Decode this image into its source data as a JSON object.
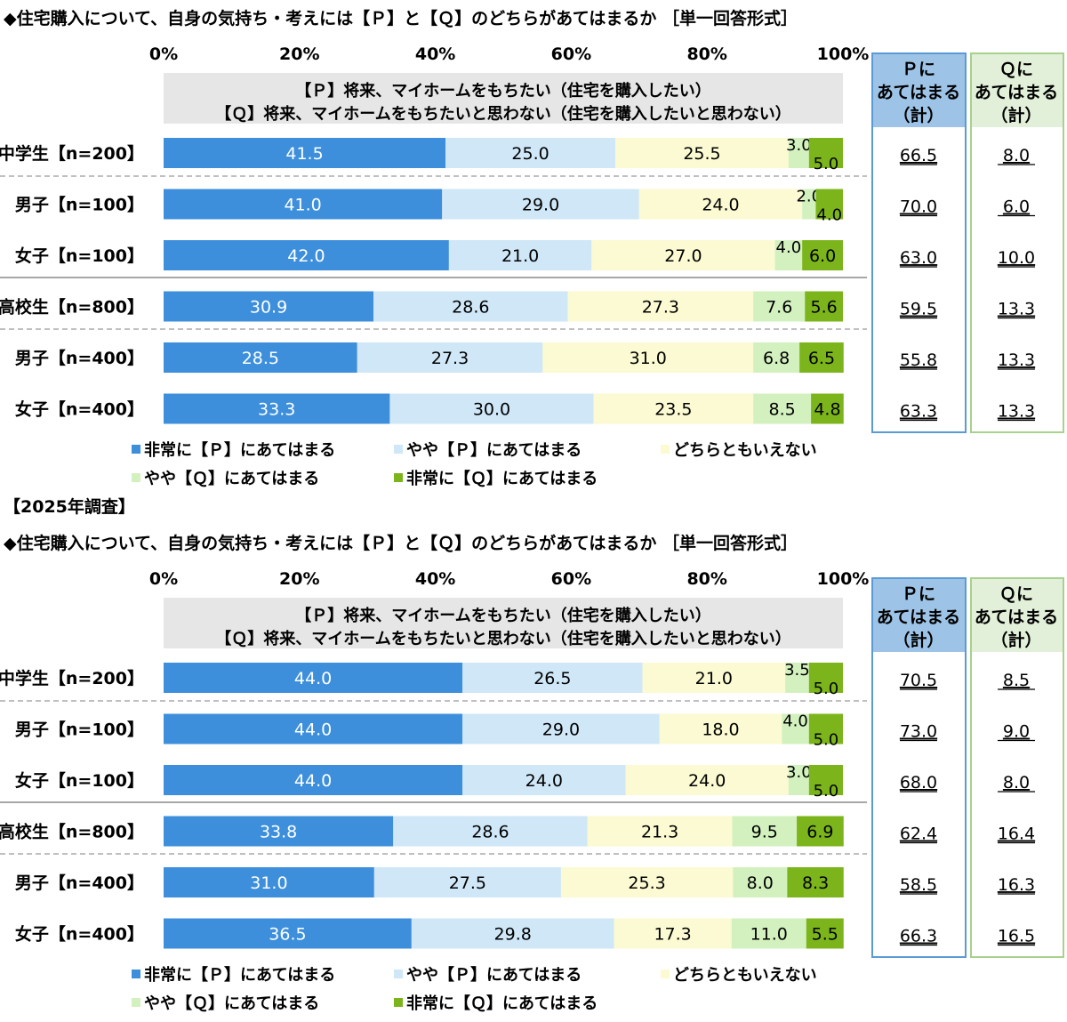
{
  "colors": {
    "p_strong": "#3d8fdc",
    "p_some": "#cfe7f7",
    "neutral": "#fbfad2",
    "q_some": "#d3f1bf",
    "q_strong": "#7cb51b",
    "p_total_border": "#5b9bd5",
    "p_total_header_bg": "#9dc3e6",
    "q_total_border": "#a9d18e",
    "q_total_header_bg": "#e2f0d9",
    "header_band": "#e6e6e6"
  },
  "panels": [
    {
      "survey_label": "",
      "title": "◆住宅購入について、自身の気持ち・考えには【Ｐ】と【Ｑ】のどちらがあてはまるか ［単一回答形式］",
      "question_p": "【Ｐ】将来、マイホームをもちたい（住宅を購入したい）",
      "question_q": "【Ｑ】将来、マイホームをもちたいと思わない（住宅を購入したいと思わない）",
      "p_total_header": [
        "Ｐに",
        "あてはまる",
        "（計）"
      ],
      "q_total_header": [
        "Ｑに",
        "あてはまる",
        "（計）"
      ]
    },
    {
      "survey_label": "【2025年調査】",
      "title": "◆住宅購入について、自身の気持ち・考えには【Ｐ】と【Ｑ】のどちらがあてはまるか ［単一回答形式］",
      "question_p": "【Ｐ】将来、マイホームをもちたい（住宅を購入したい）",
      "question_q": "【Ｑ】将来、マイホームをもちたいと思わない（住宅を購入したいと思わない）",
      "p_total_header": [
        "Ｐに",
        "あてはまる",
        "（計）"
      ],
      "q_total_header": [
        "Ｑに",
        "あてはまる",
        "（計）"
      ]
    }
  ],
  "chart_data": [
    {
      "type": "bar",
      "orientation": "horizontal",
      "stacked": true,
      "xlim": [
        0,
        100
      ],
      "xticks": [
        "0%",
        "20%",
        "40%",
        "60%",
        "80%",
        "100%"
      ],
      "categories": [
        "中学生【n=200】",
        "男子【n=100】",
        "女子【n=100】",
        "高校生【n=800】",
        "男子【n=400】",
        "女子【n=400】"
      ],
      "series": [
        {
          "name": "非常に【Ｐ】にあてはまる",
          "values": [
            41.5,
            41.0,
            42.0,
            30.9,
            28.5,
            33.3
          ]
        },
        {
          "name": "やや【Ｐ】にあてはまる",
          "values": [
            25.0,
            29.0,
            21.0,
            28.6,
            27.3,
            30.0
          ]
        },
        {
          "name": "どちらともいえない",
          "values": [
            25.5,
            24.0,
            27.0,
            27.3,
            31.0,
            23.5
          ]
        },
        {
          "name": "やや【Ｑ】にあてはまる",
          "values": [
            3.0,
            2.0,
            4.0,
            7.6,
            6.8,
            8.5
          ]
        },
        {
          "name": "非常に【Ｑ】にあてはまる",
          "values": [
            5.0,
            4.0,
            6.0,
            5.6,
            6.5,
            4.8
          ]
        }
      ],
      "p_total": [
        "66.5",
        "70.0",
        "63.0",
        "59.5",
        "55.8",
        "63.3"
      ],
      "q_total": [
        "8.0",
        "6.0",
        "10.0",
        "13.3",
        "13.3",
        "13.3"
      ],
      "legend": "bottom"
    },
    {
      "type": "bar",
      "orientation": "horizontal",
      "stacked": true,
      "xlim": [
        0,
        100
      ],
      "xticks": [
        "0%",
        "20%",
        "40%",
        "60%",
        "80%",
        "100%"
      ],
      "categories": [
        "中学生【n=200】",
        "男子【n=100】",
        "女子【n=100】",
        "高校生【n=800】",
        "男子【n=400】",
        "女子【n=400】"
      ],
      "series": [
        {
          "name": "非常に【Ｐ】にあてはまる",
          "values": [
            44.0,
            44.0,
            44.0,
            33.8,
            31.0,
            36.5
          ]
        },
        {
          "name": "やや【Ｐ】にあてはまる",
          "values": [
            26.5,
            29.0,
            24.0,
            28.6,
            27.5,
            29.8
          ]
        },
        {
          "name": "どちらともいえない",
          "values": [
            21.0,
            18.0,
            24.0,
            21.3,
            25.3,
            17.3
          ]
        },
        {
          "name": "やや【Ｑ】にあてはまる",
          "values": [
            3.5,
            4.0,
            3.0,
            9.5,
            8.0,
            11.0
          ]
        },
        {
          "name": "非常に【Ｑ】にあてはまる",
          "values": [
            5.0,
            5.0,
            5.0,
            6.9,
            8.3,
            5.5
          ]
        }
      ],
      "p_total": [
        "70.5",
        "73.0",
        "68.0",
        "62.4",
        "58.5",
        "66.3"
      ],
      "q_total": [
        "8.5",
        "9.0",
        "8.0",
        "16.4",
        "16.3",
        "16.5"
      ],
      "legend": "bottom"
    }
  ]
}
